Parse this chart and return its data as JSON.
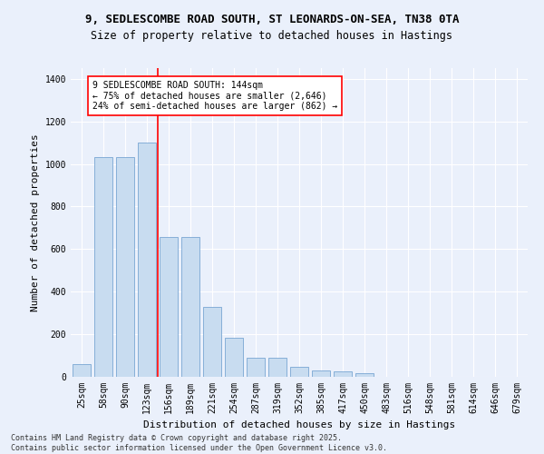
{
  "title_line1": "9, SEDLESCOMBE ROAD SOUTH, ST LEONARDS-ON-SEA, TN38 0TA",
  "title_line2": "Size of property relative to detached houses in Hastings",
  "xlabel": "Distribution of detached houses by size in Hastings",
  "ylabel": "Number of detached properties",
  "categories": [
    "25sqm",
    "58sqm",
    "90sqm",
    "123sqm",
    "156sqm",
    "189sqm",
    "221sqm",
    "254sqm",
    "287sqm",
    "319sqm",
    "352sqm",
    "385sqm",
    "417sqm",
    "450sqm",
    "483sqm",
    "516sqm",
    "548sqm",
    "581sqm",
    "614sqm",
    "646sqm",
    "679sqm"
  ],
  "values": [
    60,
    1030,
    1030,
    1100,
    655,
    655,
    330,
    185,
    90,
    90,
    45,
    28,
    25,
    15,
    0,
    0,
    0,
    0,
    0,
    0,
    0
  ],
  "bar_color": "#c8dcf0",
  "bar_edge_color": "#6699cc",
  "red_line_x": 3.5,
  "annotation_text_line1": "9 SEDLESCOMBE ROAD SOUTH: 144sqm",
  "annotation_text_line2": "← 75% of detached houses are smaller (2,646)",
  "annotation_text_line3": "24% of semi-detached houses are larger (862) →",
  "ylim": [
    0,
    1450
  ],
  "yticks": [
    0,
    200,
    400,
    600,
    800,
    1000,
    1200,
    1400
  ],
  "bg_color": "#eaf0fb",
  "grid_color": "#ffffff",
  "footer_line1": "Contains HM Land Registry data © Crown copyright and database right 2025.",
  "footer_line2": "Contains public sector information licensed under the Open Government Licence v3.0.",
  "title_fontsize": 9,
  "subtitle_fontsize": 8.5,
  "axis_label_fontsize": 8,
  "tick_fontsize": 7,
  "annotation_fontsize": 7,
  "footer_fontsize": 6
}
